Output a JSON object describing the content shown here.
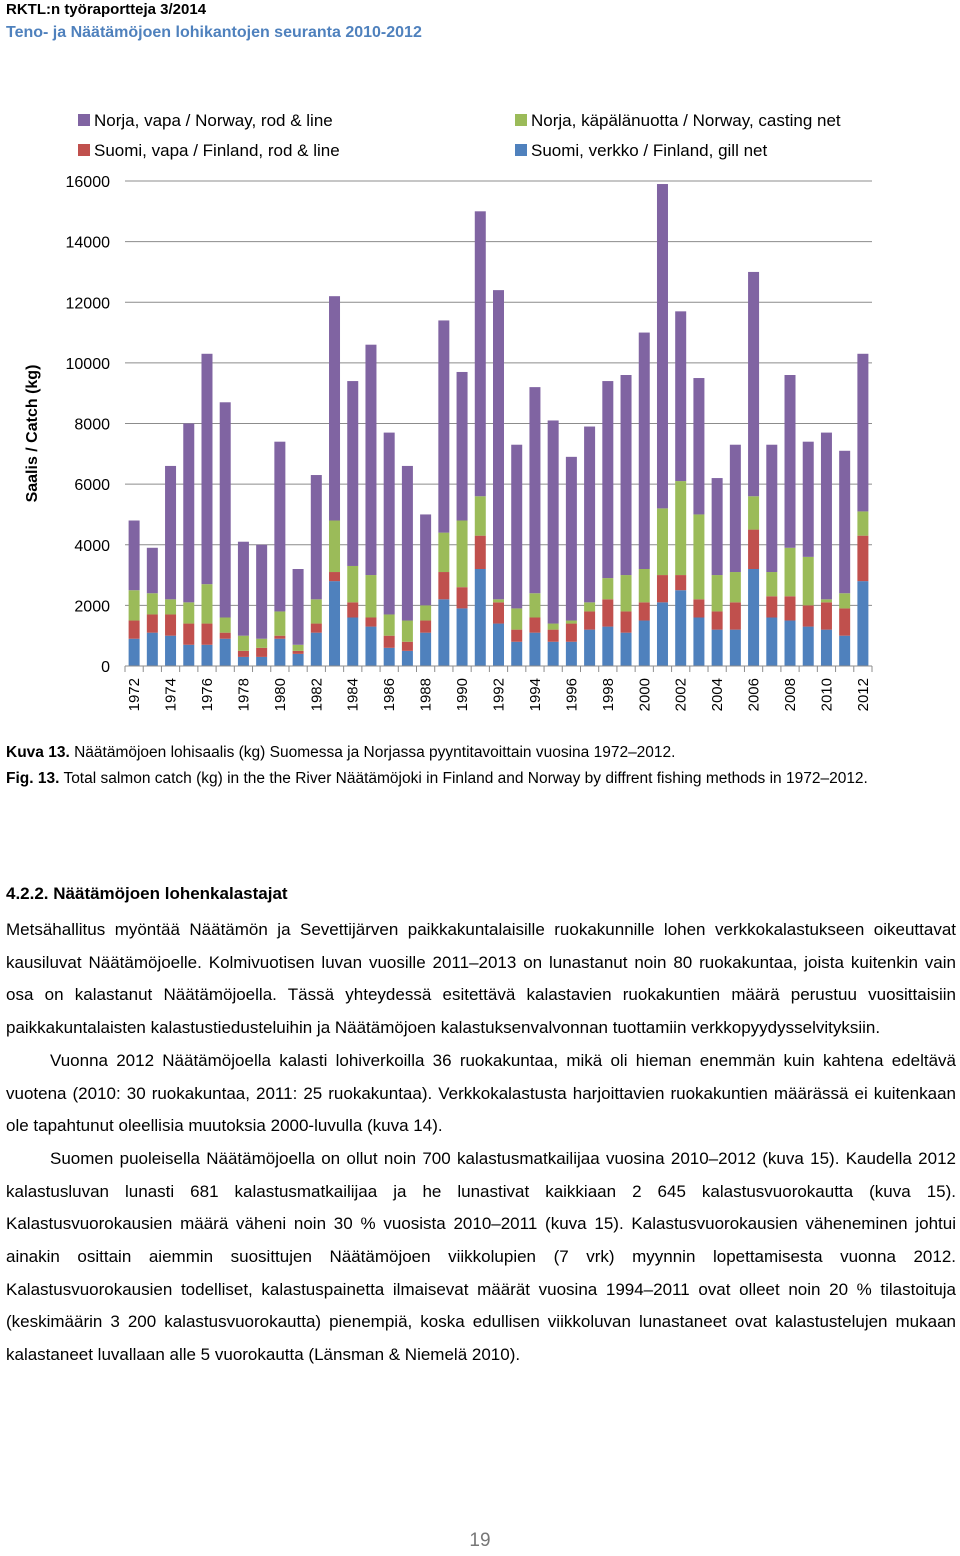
{
  "header": {
    "series_title": "RKTL:n työraportteja 3/2014",
    "report_title": "Teno- ja Näätämöjoen lohikantojen seuranta 2010-2012"
  },
  "chart_data": {
    "type": "stacked_bar",
    "y_label": "Saalis / Catch (kg)",
    "ylim": [
      0,
      16000
    ],
    "yticks": [
      0,
      2000,
      4000,
      6000,
      8000,
      10000,
      12000,
      14000,
      16000
    ],
    "grid": true,
    "categories": [
      "1972",
      null,
      "1974",
      null,
      "1976",
      null,
      "1978",
      null,
      "1980",
      null,
      "1982",
      null,
      "1984",
      null,
      "1986",
      null,
      "1988",
      null,
      "1990",
      null,
      "1992",
      null,
      "1994",
      null,
      "1996",
      null,
      "1998",
      null,
      "2000",
      null,
      "2002",
      null,
      "2004",
      null,
      "2006",
      null,
      "2008",
      null,
      "2010",
      null,
      "2012"
    ],
    "series": [
      {
        "name": "Suomi, verkko / Finland, gill net",
        "color": "#4f81bd",
        "values": [
          900,
          1100,
          1000,
          700,
          700,
          900,
          300,
          300,
          900,
          400,
          1100,
          2800,
          1600,
          1300,
          600,
          500,
          1100,
          2200,
          1900,
          3200,
          1400,
          800,
          1100,
          800,
          800,
          1200,
          1300,
          1100,
          1500,
          2100,
          2500,
          1600,
          1200,
          1200,
          3200,
          1600,
          1500,
          1300,
          1200,
          1000,
          2800
        ]
      },
      {
        "name": "Suomi, vapa / Finland, rod & line",
        "color": "#c0504d",
        "values": [
          600,
          600,
          700,
          700,
          700,
          200,
          200,
          300,
          100,
          100,
          300,
          300,
          500,
          300,
          400,
          300,
          400,
          900,
          700,
          1100,
          700,
          400,
          500,
          400,
          600,
          600,
          900,
          700,
          600,
          900,
          500,
          600,
          600,
          900,
          1300,
          700,
          800,
          700,
          900,
          900,
          1500
        ]
      },
      {
        "name": "Norja, käpälänuotta / Norway, casting net",
        "color": "#9bbb59",
        "values": [
          1000,
          700,
          500,
          700,
          1300,
          500,
          500,
          300,
          800,
          200,
          800,
          1700,
          1200,
          1400,
          700,
          700,
          500,
          1300,
          2200,
          1300,
          100,
          700,
          800,
          200,
          100,
          300,
          700,
          1200,
          1100,
          2200,
          3100,
          2800,
          1200,
          1000,
          1100,
          800,
          1600,
          1600,
          100,
          500,
          800
        ]
      },
      {
        "name": "Norja, vapa / Norway, rod & line",
        "color": "#8064a2",
        "values": [
          2300,
          1500,
          4400,
          5900,
          7600,
          7100,
          3100,
          3100,
          5600,
          2500,
          4100,
          7400,
          6100,
          7600,
          6000,
          5100,
          3000,
          7000,
          4900,
          9400,
          10200,
          5400,
          6800,
          6700,
          5400,
          5800,
          6500,
          6600,
          7800,
          10700,
          5600,
          4500,
          3200,
          4200,
          7400,
          4200,
          5700,
          3800,
          5500,
          4700,
          5200
        ]
      }
    ]
  },
  "caption": {
    "fi_label": "Kuva 13.",
    "fi_text": "Näätämöjoen lohisaalis (kg) Suomessa ja Norjassa pyyntitavoittain vuosina 1972–2012.",
    "en_label": "Fig. 13.",
    "en_text": "Total salmon catch (kg) in the the River Näätämöjoki in Finland and Norway by diffrent fishing methods in 1972–2012."
  },
  "section": {
    "heading": "4.2.2. Näätämöjoen lohenkalastajat",
    "paragraphs": [
      "Metsähallitus myöntää Näätämön ja Sevettijärven paikkakuntalaisille ruokakunnille lohen verkkokalastukseen oikeuttavat kausiluvat Näätämöjoelle. Kolmivuotisen luvan vuosille 2011–2013 on lunastanut noin 80 ruokakuntaa, joista kuitenkin vain osa on kalastanut Näätämöjoella. Tässä yhteydessä esitettävä kalastavien ruokakuntien määrä perustuu vuosittaisiin paikkakuntalaisten kalastustiedusteluihin ja Näätämöjoen kalastuksenvalvonnan tuottamiin verkkopyydysselvityksiin.",
      "Vuonna 2012 Näätämöjoella kalasti lohiverkoilla 36 ruokakuntaa, mikä oli hieman enemmän kuin kahtena edeltävä vuotena (2010: 30 ruokakuntaa, 2011: 25 ruokakuntaa). Verkkokalastusta harjoittavien ruokakuntien määrässä ei kuitenkaan ole tapahtunut oleellisia muutoksia 2000-luvulla (kuva 14).",
      "Suomen puoleisella Näätämöjoella on ollut noin 700 kalastusmatkailijaa vuosina 2010–2012 (kuva 15). Kaudella 2012 kalastusluvan lunasti 681 kalastusmatkailijaa ja he lunastivat kaikkiaan 2 645 kalastusvuorokautta (kuva 15). Kalastusvuorokausien määrä väheni noin 30 % vuosista 2010–2011 (kuva 15). Kalastusvuorokausien väheneminen johtui ainakin osittain aiemmin suosittujen Näätämöjoen viikkolupien (7 vrk) myynnin lopettamisesta vuonna 2012. Kalastusvuorokausien todelliset, kalastuspainetta ilmaisevat määrät vuosina 1994–2011 ovat olleet noin 20 % tilastoituja (keskimäärin 3 200 kalastusvuorokautta) pienempiä, koska edullisen viikkoluvan lunastaneet ovat kalastustelujen mukaan kalastaneet luvallaan alle 5 vuorokautta (Länsman & Niemelä 2010)."
    ]
  },
  "page_number": "19"
}
